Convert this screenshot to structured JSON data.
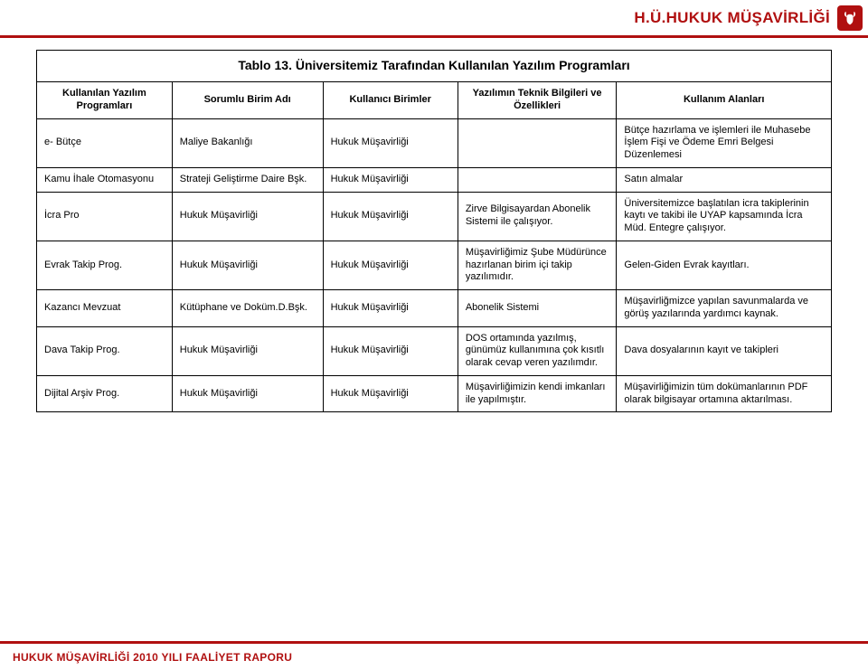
{
  "header": {
    "title": "H.Ü.HUKUK MÜŞAVİRLİĞİ",
    "logo_bg": "#b01010"
  },
  "footer": {
    "text": "HUKUK MÜŞAVİRLİĞİ 2010 YILI FAALİYET RAPORU"
  },
  "table": {
    "caption": "Tablo 13. Üniversitemiz Tarafından Kullanılan Yazılım Programları",
    "columns": [
      "Kullanılan Yazılım Programları",
      "Sorumlu Birim Adı",
      "Kullanıcı Birimler",
      "Yazılımın Teknik Bilgileri ve Özellikleri",
      "Kullanım Alanları"
    ],
    "rows": [
      {
        "c0": "e- Bütçe",
        "c1": "Maliye Bakanlığı",
        "c2": "Hukuk Müşavirliği",
        "c3": "",
        "c4": "Bütçe hazırlama ve işlemleri ile Muhasebe İşlem Fişi ve Ödeme Emri Belgesi Düzenlemesi"
      },
      {
        "c0": "Kamu İhale Otomasyonu",
        "c1": "Strateji Geliştirme Daire Bşk.",
        "c2": "Hukuk Müşavirliği",
        "c3": "",
        "c4": "Satın almalar"
      },
      {
        "c0": "İcra Pro",
        "c1": "Hukuk Müşavirliği",
        "c2": "Hukuk Müşavirliği",
        "c3": "Zirve Bilgisayardan Abonelik Sistemi ile çalışıyor.",
        "c4": "Üniversitemizce başlatılan icra takiplerinin kaytı ve takibi ile UYAP kapsamında İcra Müd. Entegre çalışıyor."
      },
      {
        "c0": "Evrak Takip Prog.",
        "c1": "Hukuk Müşavirliği",
        "c2": "Hukuk Müşavirliği",
        "c3": "Müşavirliğimiz Şube Müdürünce hazırlanan birim içi takip yazılımıdır.",
        "c4": "Gelen-Giden Evrak kayıtları."
      },
      {
        "c0": "Kazancı Mevzuat",
        "c1": "Kütüphane ve Doküm.D.Bşk.",
        "c2": "Hukuk Müşavirliği",
        "c3": "Abonelik Sistemi",
        "c4": "Müşavirliğmizce yapılan savunmalarda ve görüş yazılarında yardımcı kaynak."
      },
      {
        "c0": "Dava Takip Prog.",
        "c1": "Hukuk Müşavirliği",
        "c2": "Hukuk Müşavirliği",
        "c3": "DOS ortamında yazılmış, günümüz kullanımına çok kısıtlı olarak cevap veren yazılımdır.",
        "c4": "Dava dosyalarının kayıt ve takipleri"
      },
      {
        "c0": "Dijital Arşiv Prog.",
        "c1": "Hukuk Müşavirliği",
        "c2": "Hukuk Müşavirliği",
        "c3": "Müşavirliğimizin kendi imkanları ile yapılmıştır.",
        "c4": "Müşavirliğimizin tüm dokümanlarının PDF olarak bilgisayar ortamına aktarılması."
      }
    ]
  },
  "colors": {
    "accent": "#b01010",
    "text": "#000000",
    "bg": "#ffffff",
    "border": "#000000"
  },
  "typography": {
    "header_title_pt": 17,
    "caption_pt": 14,
    "cell_pt": 11,
    "footer_pt": 12
  }
}
